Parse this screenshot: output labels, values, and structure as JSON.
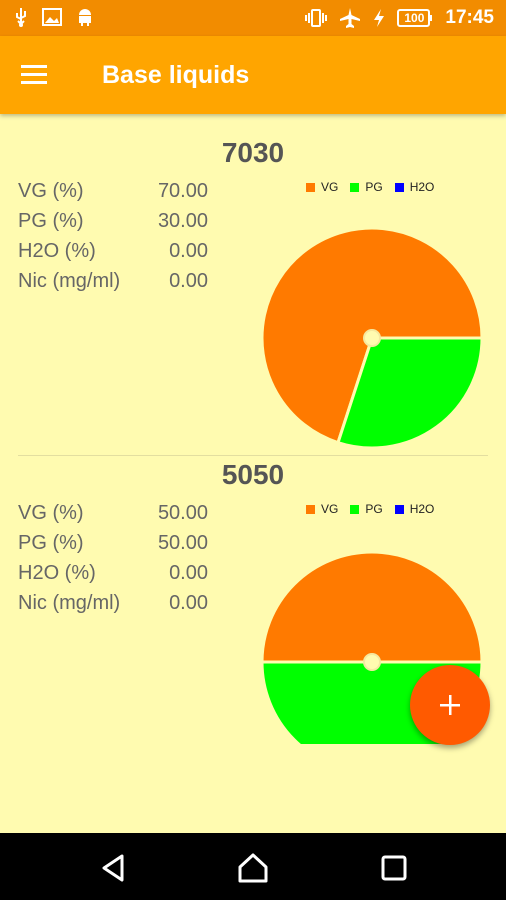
{
  "status_bar": {
    "battery": "100",
    "time": "17:45",
    "left_icons": [
      "usb-icon",
      "image-icon",
      "android-icon"
    ],
    "right_icons": [
      "vibrate-icon",
      "airplane-icon",
      "charging-bolt-icon",
      "battery-icon"
    ]
  },
  "app_bar": {
    "title": "Base liquids",
    "menu_icon": "hamburger-menu-icon"
  },
  "legend_labels": {
    "vg": "VG",
    "pg": "PG",
    "h2o": "H2O"
  },
  "colors": {
    "vg": "#ff7a00",
    "pg": "#00ff00",
    "h2o": "#0000ff",
    "app_bar": "#ffa500",
    "status_bar": "#f28c00",
    "background": "#fffbb0",
    "fab": "#ff5a00"
  },
  "liquids": [
    {
      "name": "7030",
      "rows": [
        {
          "label": "VG (%)",
          "value": "70.00"
        },
        {
          "label": "PG (%)",
          "value": "30.00"
        },
        {
          "label": "H2O (%)",
          "value": "0.00"
        },
        {
          "label": "Nic (mg/ml)",
          "value": "0.00"
        }
      ]
    },
    {
      "name": "5050",
      "rows": [
        {
          "label": "VG (%)",
          "value": "50.00"
        },
        {
          "label": "PG (%)",
          "value": "50.00"
        },
        {
          "label": "H2O (%)",
          "value": "0.00"
        },
        {
          "label": "Nic (mg/ml)",
          "value": "0.00"
        }
      ]
    }
  ],
  "chart_data": [
    {
      "type": "pie",
      "categories": [
        "VG",
        "PG",
        "H2O"
      ],
      "values": [
        70,
        30,
        0
      ],
      "legend": "top-right"
    },
    {
      "type": "pie",
      "categories": [
        "VG",
        "PG",
        "H2O"
      ],
      "values": [
        50,
        50,
        0
      ],
      "legend": "top-right"
    }
  ],
  "fab": {
    "icon": "plus-icon"
  },
  "nav_bar": {
    "icons": [
      "back-icon",
      "home-icon",
      "recents-icon"
    ]
  }
}
